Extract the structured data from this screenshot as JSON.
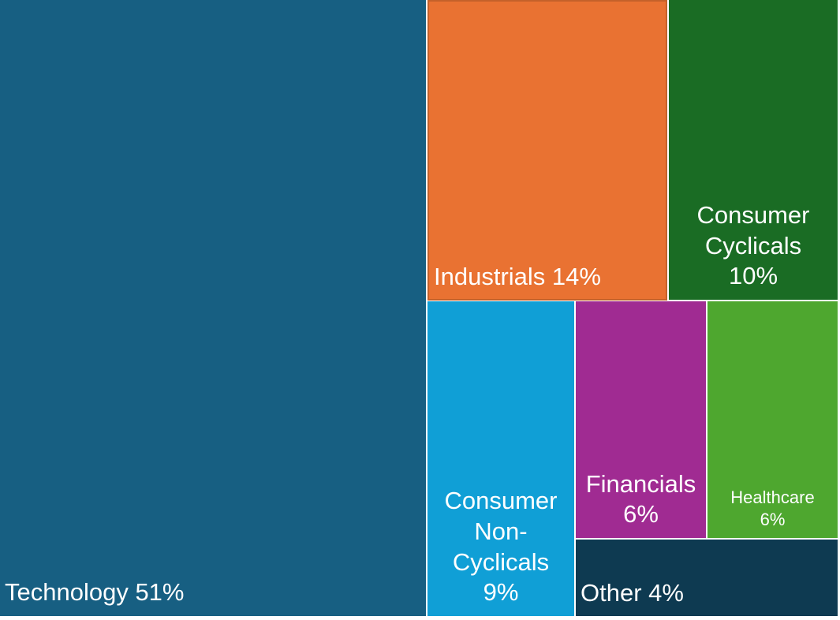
{
  "chart_data": {
    "type": "treemap",
    "title": "",
    "unit": "%",
    "items": [
      {
        "name": "Technology",
        "value": 51,
        "label": "Technology 51%",
        "color": "#175f82"
      },
      {
        "name": "Industrials",
        "value": 14,
        "label": "Industrials 14%",
        "color": "#e97232"
      },
      {
        "name": "Consumer Cyclicals",
        "value": 10,
        "label_lines": [
          "Consumer",
          "Cyclicals",
          "10%"
        ],
        "color": "#1a6c24"
      },
      {
        "name": "Consumer Non-Cyclicals",
        "value": 9,
        "label_lines": [
          "Consumer",
          "Non-",
          "Cyclicals",
          "9%"
        ],
        "color": "#109fd6"
      },
      {
        "name": "Financials",
        "value": 6,
        "label_lines": [
          "Financials",
          "6%"
        ],
        "color": "#a02b92"
      },
      {
        "name": "Healthcare",
        "value": 6,
        "label_lines": [
          "Healthcare",
          "6%"
        ],
        "color": "#4ea72f"
      },
      {
        "name": "Other",
        "value": 4,
        "label": "Other 4%",
        "color": "#0e3a51"
      }
    ]
  }
}
